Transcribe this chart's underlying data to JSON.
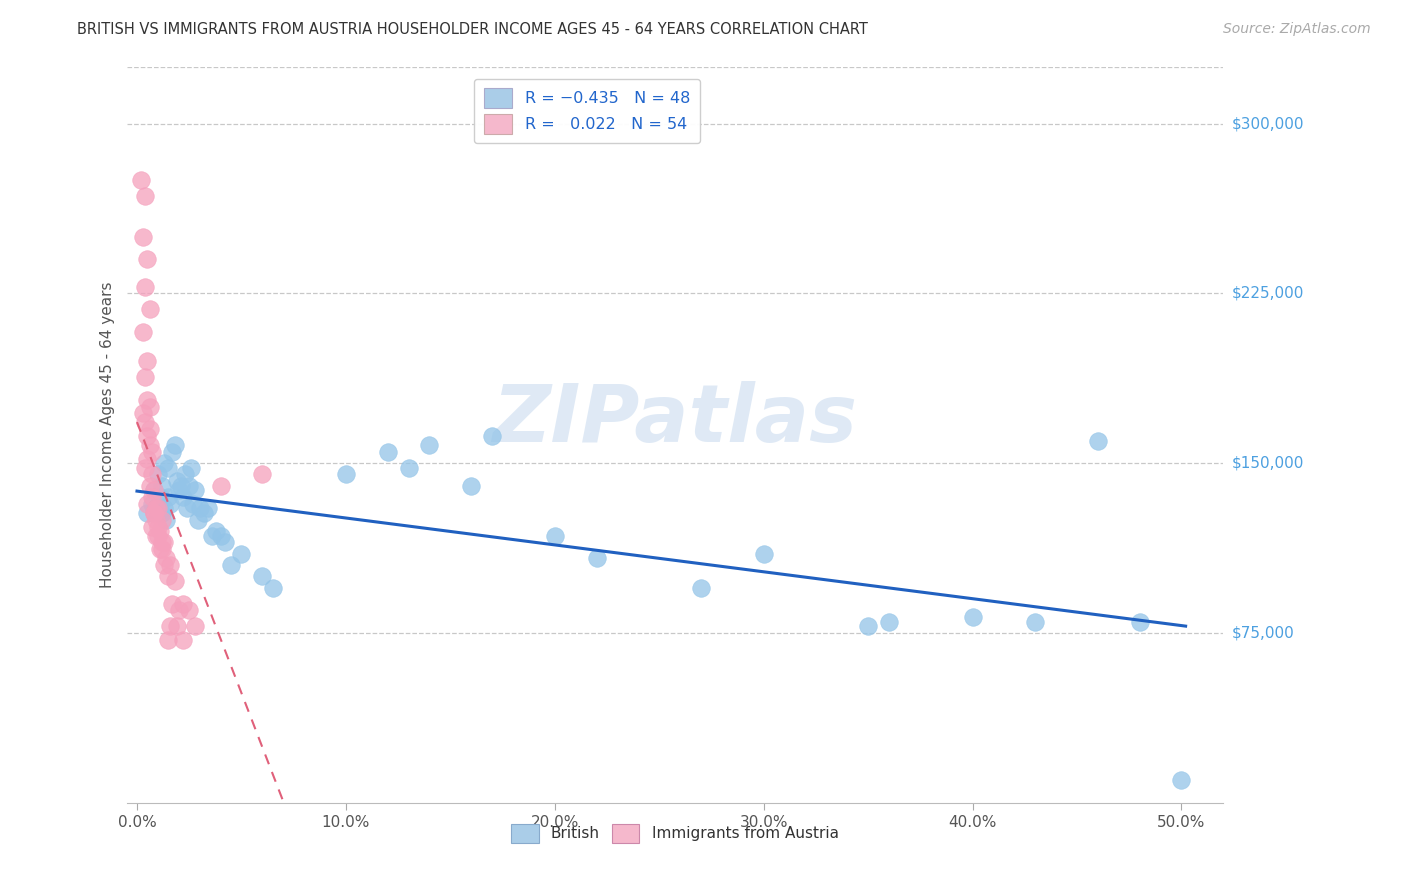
{
  "title": "BRITISH VS IMMIGRANTS FROM AUSTRIA HOUSEHOLDER INCOME AGES 45 - 64 YEARS CORRELATION CHART",
  "source": "Source: ZipAtlas.com",
  "ylabel": "Householder Income Ages 45 - 64 years",
  "xlabel_ticks": [
    "0.0%",
    "10.0%",
    "20.0%",
    "30.0%",
    "40.0%",
    "50.0%"
  ],
  "xlabel_vals": [
    0.0,
    0.1,
    0.2,
    0.3,
    0.4,
    0.5
  ],
  "ytick_labels": [
    "$75,000",
    "$150,000",
    "$225,000",
    "$300,000"
  ],
  "ytick_vals": [
    75000,
    150000,
    225000,
    300000
  ],
  "ylim": [
    0,
    325000
  ],
  "xlim": [
    -0.005,
    0.52
  ],
  "british_color": "#93c4e8",
  "austria_color": "#f5a0bc",
  "british_line_color": "#2060c0",
  "austria_line_color": "#e0607a",
  "watermark_text": "ZIPatlas",
  "watermark_color": "#c5d8ee",
  "legend_british_color": "#aacde8",
  "legend_austria_color": "#f5b8cc",
  "british_scatter": [
    [
      0.005,
      128000
    ],
    [
      0.007,
      132000
    ],
    [
      0.008,
      138000
    ],
    [
      0.009,
      130000
    ],
    [
      0.01,
      145000
    ],
    [
      0.01,
      128000
    ],
    [
      0.011,
      135000
    ],
    [
      0.012,
      140000
    ],
    [
      0.012,
      128000
    ],
    [
      0.013,
      150000
    ],
    [
      0.013,
      130000
    ],
    [
      0.014,
      125000
    ],
    [
      0.015,
      148000
    ],
    [
      0.015,
      135000
    ],
    [
      0.016,
      132000
    ],
    [
      0.017,
      155000
    ],
    [
      0.018,
      158000
    ],
    [
      0.019,
      142000
    ],
    [
      0.02,
      138000
    ],
    [
      0.021,
      140000
    ],
    [
      0.022,
      135000
    ],
    [
      0.023,
      145000
    ],
    [
      0.024,
      130000
    ],
    [
      0.025,
      140000
    ],
    [
      0.026,
      148000
    ],
    [
      0.027,
      132000
    ],
    [
      0.028,
      138000
    ],
    [
      0.029,
      125000
    ],
    [
      0.03,
      130000
    ],
    [
      0.032,
      128000
    ],
    [
      0.034,
      130000
    ],
    [
      0.036,
      118000
    ],
    [
      0.038,
      120000
    ],
    [
      0.04,
      118000
    ],
    [
      0.042,
      115000
    ],
    [
      0.045,
      105000
    ],
    [
      0.05,
      110000
    ],
    [
      0.06,
      100000
    ],
    [
      0.065,
      95000
    ],
    [
      0.1,
      145000
    ],
    [
      0.12,
      155000
    ],
    [
      0.13,
      148000
    ],
    [
      0.14,
      158000
    ],
    [
      0.16,
      140000
    ],
    [
      0.17,
      162000
    ],
    [
      0.2,
      118000
    ],
    [
      0.22,
      108000
    ],
    [
      0.27,
      95000
    ],
    [
      0.3,
      110000
    ],
    [
      0.35,
      78000
    ],
    [
      0.36,
      80000
    ],
    [
      0.4,
      82000
    ],
    [
      0.43,
      80000
    ],
    [
      0.46,
      160000
    ],
    [
      0.48,
      80000
    ],
    [
      0.5,
      10000
    ]
  ],
  "austria_scatter": [
    [
      0.002,
      275000
    ],
    [
      0.004,
      268000
    ],
    [
      0.003,
      250000
    ],
    [
      0.005,
      240000
    ],
    [
      0.004,
      228000
    ],
    [
      0.006,
      218000
    ],
    [
      0.003,
      208000
    ],
    [
      0.005,
      195000
    ],
    [
      0.004,
      188000
    ],
    [
      0.005,
      178000
    ],
    [
      0.006,
      175000
    ],
    [
      0.003,
      172000
    ],
    [
      0.004,
      168000
    ],
    [
      0.006,
      165000
    ],
    [
      0.005,
      162000
    ],
    [
      0.006,
      158000
    ],
    [
      0.007,
      155000
    ],
    [
      0.005,
      152000
    ],
    [
      0.004,
      148000
    ],
    [
      0.007,
      145000
    ],
    [
      0.006,
      140000
    ],
    [
      0.008,
      138000
    ],
    [
      0.007,
      135000
    ],
    [
      0.005,
      132000
    ],
    [
      0.009,
      130000
    ],
    [
      0.008,
      128000
    ],
    [
      0.01,
      130000
    ],
    [
      0.009,
      125000
    ],
    [
      0.007,
      122000
    ],
    [
      0.011,
      120000
    ],
    [
      0.01,
      118000
    ],
    [
      0.012,
      115000
    ],
    [
      0.011,
      112000
    ],
    [
      0.008,
      128000
    ],
    [
      0.012,
      125000
    ],
    [
      0.01,
      122000
    ],
    [
      0.009,
      118000
    ],
    [
      0.013,
      115000
    ],
    [
      0.012,
      112000
    ],
    [
      0.014,
      108000
    ],
    [
      0.013,
      105000
    ],
    [
      0.016,
      105000
    ],
    [
      0.015,
      100000
    ],
    [
      0.018,
      98000
    ],
    [
      0.017,
      88000
    ],
    [
      0.02,
      85000
    ],
    [
      0.019,
      78000
    ],
    [
      0.022,
      88000
    ],
    [
      0.025,
      85000
    ],
    [
      0.016,
      78000
    ],
    [
      0.015,
      72000
    ],
    [
      0.022,
      72000
    ],
    [
      0.028,
      78000
    ],
    [
      0.06,
      145000
    ],
    [
      0.04,
      140000
    ]
  ]
}
